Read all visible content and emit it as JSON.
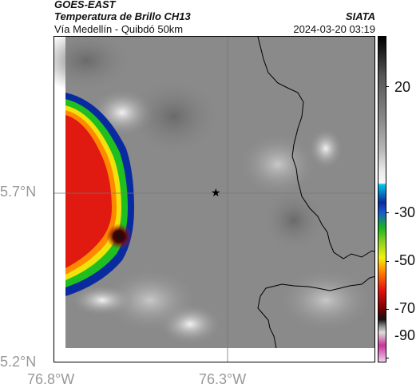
{
  "header": {
    "satellite": "GOES-EAST",
    "product": "Temperatura de Brillo CH13",
    "region": "Vía Medellín - Quibdó 50km",
    "brand": "SIATA",
    "datetime": "2024-03-20 03:19"
  },
  "axes": {
    "lat_ticks": [
      "5.7°N",
      "5.2°N"
    ],
    "lon_ticks": [
      "76.8°W",
      "76.3°W"
    ]
  },
  "colorbar": {
    "ticks": [
      "20",
      "-30",
      "-50",
      "-70",
      "-90"
    ],
    "colors": {
      "cyan": "#00c8e8",
      "blue": "#0a2a9c",
      "green": "#1bb81b",
      "yellow": "#f2f20a",
      "orange": "#ff8a00",
      "red": "#e81010",
      "darkred": "#700000",
      "magenta": "#cc3399"
    }
  },
  "map": {
    "marker": "star-icon",
    "colors": {
      "background": "#8a8a8a",
      "cloud_core": "#e01a10",
      "cloud_edge_green": "#1fbf1f",
      "cloud_edge_blue": "#0a2aa0",
      "border": "#000000"
    }
  }
}
